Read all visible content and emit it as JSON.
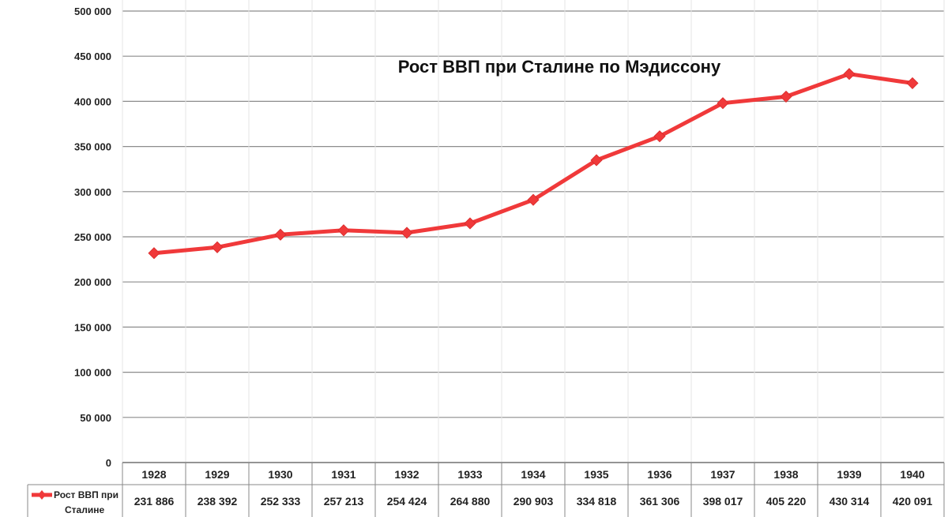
{
  "chart_data": {
    "type": "line",
    "title": "Рост ВВП при Сталине  по Мэдиссону",
    "categories": [
      "1928",
      "1929",
      "1930",
      "1931",
      "1932",
      "1933",
      "1934",
      "1935",
      "1936",
      "1937",
      "1938",
      "1939",
      "1940"
    ],
    "series": [
      {
        "name": "Рост ВВП при Сталине",
        "values": [
          231886,
          238392,
          252333,
          257213,
          254424,
          264880,
          290903,
          334818,
          361306,
          398017,
          405220,
          430314,
          420091
        ],
        "value_labels": [
          "231 886",
          "238 392",
          "252 333",
          "257 213",
          "254 424",
          "264 880",
          "290 903",
          "334 818",
          "361 306",
          "398 017",
          "405 220",
          "430 314",
          "420 091"
        ],
        "color": "#f0393a"
      }
    ],
    "y_ticks": [
      "0",
      "50 000",
      "100 000",
      "150 000",
      "200 000",
      "250 000",
      "300 000",
      "350 000",
      "400 000",
      "450 000",
      "500 000"
    ],
    "ylim": [
      0,
      500000
    ],
    "grid": true,
    "legend": "data-table"
  }
}
